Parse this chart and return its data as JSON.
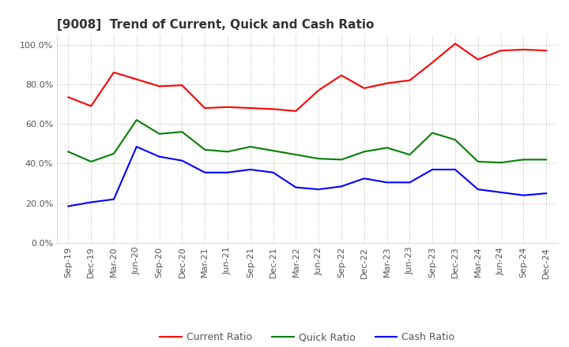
{
  "title": "[9008]  Trend of Current, Quick and Cash Ratio",
  "x_labels": [
    "Sep-19",
    "Dec-19",
    "Mar-20",
    "Jun-20",
    "Sep-20",
    "Dec-20",
    "Mar-21",
    "Jun-21",
    "Sep-21",
    "Dec-21",
    "Mar-22",
    "Jun-22",
    "Sep-22",
    "Dec-22",
    "Mar-23",
    "Jun-23",
    "Sep-23",
    "Dec-23",
    "Mar-24",
    "Jun-24",
    "Sep-24",
    "Dec-24"
  ],
  "current_ratio": [
    73.5,
    69.0,
    86.0,
    82.5,
    79.0,
    79.5,
    68.0,
    68.5,
    68.0,
    67.5,
    66.5,
    77.0,
    84.5,
    78.0,
    80.5,
    82.0,
    91.0,
    100.5,
    92.5,
    97.0,
    97.5,
    97.0
  ],
  "quick_ratio": [
    46.0,
    41.0,
    45.0,
    62.0,
    55.0,
    56.0,
    47.0,
    46.0,
    48.5,
    46.5,
    44.5,
    42.5,
    42.0,
    46.0,
    48.0,
    44.5,
    55.5,
    52.0,
    41.0,
    40.5,
    42.0,
    42.0
  ],
  "cash_ratio": [
    18.5,
    20.5,
    22.0,
    48.5,
    43.5,
    41.5,
    35.5,
    35.5,
    37.0,
    35.5,
    28.0,
    27.0,
    28.5,
    32.5,
    30.5,
    30.5,
    37.0,
    37.0,
    27.0,
    25.5,
    24.0,
    25.0
  ],
  "current_color": "#ff0000",
  "quick_color": "#008000",
  "cash_color": "#0000ff",
  "ylim": [
    0,
    105
  ],
  "yticks": [
    0,
    20,
    40,
    60,
    80,
    100
  ],
  "background_color": "#ffffff",
  "plot_bg_color": "#ffffff",
  "grid_color": "#aaaaaa",
  "title_fontsize": 11,
  "legend_fontsize": 9,
  "axis_fontsize": 8
}
